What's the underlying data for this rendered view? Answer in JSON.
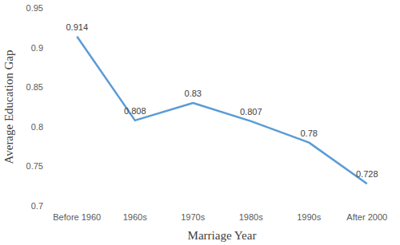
{
  "chart_data": {
    "type": "line",
    "x_label": "Marriage Year",
    "y_label": "Average Education Gap",
    "categories": [
      "Before 1960",
      "1960s",
      "1970s",
      "1980s",
      "1990s",
      "After 2000"
    ],
    "values": [
      0.914,
      0.808,
      0.83,
      0.807,
      0.78,
      0.728
    ],
    "color": "#5b9bd5",
    "ylim": [
      0.7,
      0.95
    ],
    "yticks": [
      0.7,
      0.75,
      0.8,
      0.85,
      0.9,
      0.95
    ],
    "grid": false,
    "data_labels": true
  }
}
